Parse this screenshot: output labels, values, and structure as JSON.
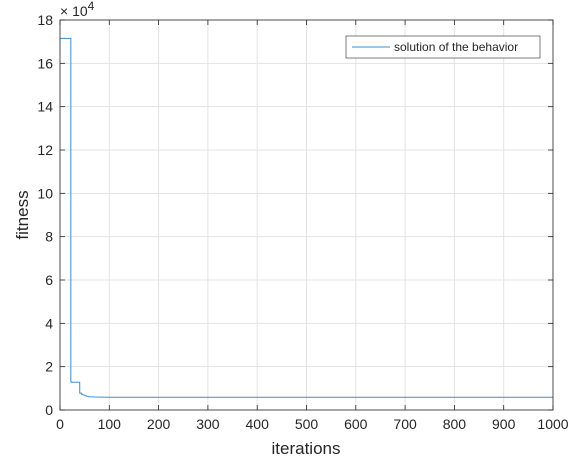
{
  "chart_data": {
    "type": "line",
    "title": "",
    "xlabel": "iterations",
    "ylabel": "fitness",
    "xlim": [
      0,
      1000
    ],
    "ylim": [
      0,
      180000
    ],
    "xticks": [
      "0",
      "100",
      "200",
      "300",
      "400",
      "500",
      "600",
      "700",
      "800",
      "900",
      "1000"
    ],
    "yticks": [
      "0",
      "2",
      "4",
      "6",
      "8",
      "10",
      "12",
      "14",
      "16",
      "18"
    ],
    "y_exponent_base": "× 10",
    "y_exponent_power": "4",
    "grid": true,
    "legend_position": "top-right",
    "colors": {
      "series": "#3a8fcf",
      "grid": "#e3e3e3",
      "axis": "#262626"
    },
    "series": [
      {
        "name": "solution of the behavior",
        "x": [
          0,
          22,
          22,
          24,
          24,
          40,
          40,
          44,
          44,
          50,
          55,
          60,
          70,
          100,
          1000
        ],
        "y": [
          171500,
          171500,
          13000,
          13000,
          12800,
          12800,
          7800,
          7800,
          7200,
          6800,
          6300,
          6100,
          6000,
          5900,
          5900
        ]
      }
    ]
  }
}
